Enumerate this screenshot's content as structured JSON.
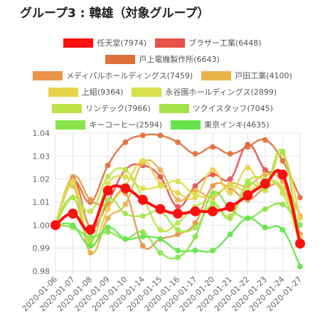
{
  "chart_data": {
    "type": "line",
    "title": "グループ3 : 韓雄（対象グループ）",
    "xlabel": "",
    "ylabel": "",
    "ylim": [
      0.98,
      1.04
    ],
    "yticks": [
      "0.98",
      "0.99",
      "1.00",
      "1.01",
      "1.02",
      "1.03",
      "1.04"
    ],
    "grid": true,
    "legend_position": "top",
    "categories": [
      "2020-01-06",
      "2020-01-07",
      "2020-01-08",
      "2020-01-09",
      "2020-01-10",
      "2020-01-14",
      "2020-01-15",
      "2020-01-16",
      "2020-01-17",
      "2020-01-20",
      "2020-01-21",
      "2020-01-22",
      "2020-01-23",
      "2020-01-24",
      "2020-01-27"
    ],
    "series": [
      {
        "name": "任天堂(7974)",
        "color": "#ff1010",
        "highlight": true,
        "values": [
          1.0,
          1.005,
          0.998,
          1.015,
          1.016,
          1.011,
          1.007,
          1.005,
          1.006,
          1.006,
          1.008,
          1.013,
          1.018,
          1.022,
          0.992
        ]
      },
      {
        "name": "ブラザー工業(6448)",
        "color": "#e8504a",
        "values": [
          1.0,
          1.02,
          0.999,
          1.01,
          1.024,
          1.026,
          1.021,
          1.008,
          1.017,
          1.022,
          1.02,
          1.035,
          1.024,
          1.02,
          0.993
        ]
      },
      {
        "name": "戸上電機製作所(6643)",
        "color": "#e0703a",
        "values": [
          1.0,
          1.019,
          1.01,
          1.026,
          1.036,
          1.039,
          1.039,
          1.036,
          1.031,
          1.034,
          1.031,
          1.034,
          1.037,
          1.028,
          1.012
        ]
      },
      {
        "name": "メディパルホールディングス(7459)",
        "color": "#e8954a",
        "values": [
          1.0,
          1.021,
          1.011,
          1.009,
          1.014,
          0.991,
          0.994,
          0.996,
          1.001,
          1.017,
          1.016,
          1.011,
          1.016,
          1.016,
          0.996
        ]
      },
      {
        "name": "戸田工業(4100)",
        "color": "#e8b44a",
        "values": [
          1.0,
          1.017,
          0.988,
          1.003,
          1.009,
          1.027,
          1.024,
          1.011,
          1.015,
          1.012,
          1.018,
          1.017,
          1.022,
          1.019,
          1.004
        ]
      },
      {
        "name": "上組(9364)",
        "color": "#e8d44a",
        "values": [
          1.0,
          1.019,
          0.991,
          1.007,
          1.017,
          1.028,
          1.018,
          1.014,
          1.012,
          1.024,
          1.014,
          1.025,
          1.015,
          1.031,
          1.003
        ]
      },
      {
        "name": "永谷園ホールディングス(2899)",
        "color": "#d8e04a",
        "values": [
          1.0,
          1.018,
          0.999,
          1.018,
          1.021,
          1.016,
          1.017,
          1.019,
          1.013,
          1.013,
          1.017,
          1.015,
          1.019,
          1.016,
          0.995
        ]
      },
      {
        "name": "リンテック(7966)",
        "color": "#bee44a",
        "values": [
          1.0,
          1.012,
          1.006,
          1.021,
          1.024,
          1.012,
          0.998,
          1.001,
          1.008,
          1.01,
          1.004,
          1.019,
          1.02,
          1.014,
          0.992
        ]
      },
      {
        "name": "ツクイスタッフ(7045)",
        "color": "#a4e44a",
        "values": [
          1.0,
          1.012,
          0.993,
          1.011,
          1.005,
          1.004,
          1.006,
          0.998,
          0.999,
          1.009,
          1.003,
          1.018,
          1.016,
          1.032,
          0.991
        ]
      },
      {
        "name": "キーコーヒー(2594)",
        "color": "#88e44a",
        "values": [
          1.0,
          0.999,
          0.995,
          0.997,
          0.994,
          0.997,
          0.988,
          0.986,
          0.995,
          1.014,
          1.007,
          1.003,
          1.007,
          1.009,
          1.0
        ]
      },
      {
        "name": "東京インキ(4635)",
        "color": "#66e44a",
        "values": [
          1.0,
          1.0,
          0.991,
          0.999,
          0.994,
          0.995,
          0.994,
          0.989,
          0.989,
          0.989,
          0.996,
          1.003,
          0.999,
          0.998,
          0.982
        ]
      }
    ]
  }
}
